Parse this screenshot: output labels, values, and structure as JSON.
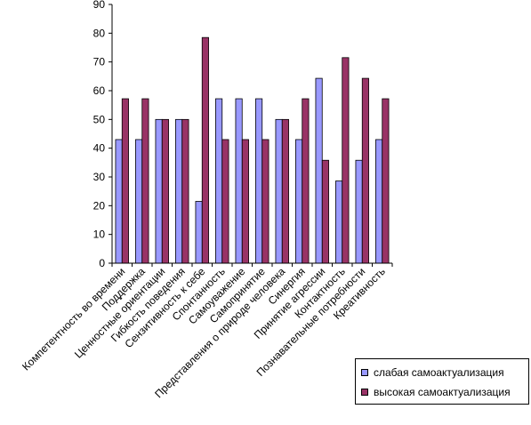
{
  "chart_data": {
    "type": "bar",
    "title": "",
    "xlabel": "",
    "ylabel": "",
    "ylim": [
      0,
      90
    ],
    "yticks": [
      0,
      10,
      20,
      30,
      40,
      50,
      60,
      70,
      80,
      90
    ],
    "grid": false,
    "legend_position": "bottom-right",
    "categories": [
      "Компетентность во времени",
      "Поддержка",
      "Ценностные ориентации",
      "Гибкость поведения",
      "Сензитивность к себе",
      "Спонтанность",
      "Самоуважение",
      "Самопринятие",
      "Представления о природе человека",
      "Синергия",
      "Принятие агрессии",
      "Контактность",
      "Познавательные потребности",
      "Креативность"
    ],
    "series": [
      {
        "name": "слабая самоактуализация",
        "color": "#9999FF",
        "values": [
          43,
          43,
          50,
          50,
          21.5,
          57.2,
          57.2,
          57.2,
          50,
          43,
          64.3,
          28.6,
          35.8,
          43
        ]
      },
      {
        "name": "высокая самоактуализация",
        "color": "#993366",
        "values": [
          57.2,
          57.2,
          50,
          50,
          78.5,
          43,
          43,
          43,
          50,
          57.2,
          35.8,
          71.5,
          64.3,
          57.2
        ]
      }
    ]
  }
}
